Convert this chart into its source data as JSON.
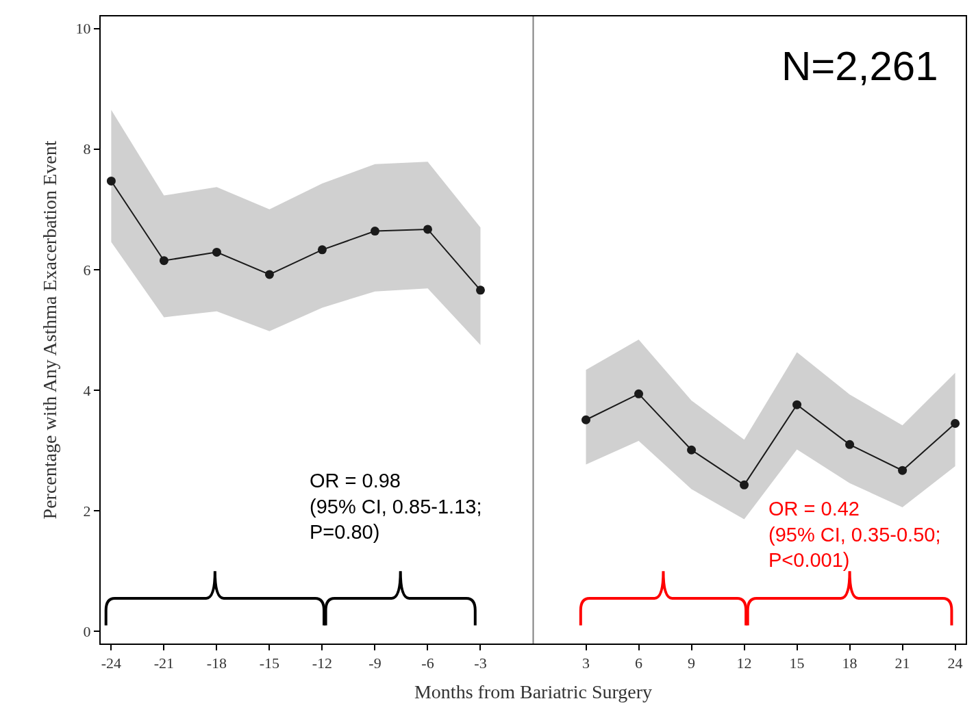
{
  "chart_data": {
    "type": "line",
    "xlabel": "Months from Bariatric Surgery",
    "ylabel": "Percentage with Any Asthma Exacerbation Event",
    "xlim": [
      -24.6,
      24.6
    ],
    "xticks": [
      -24,
      -21,
      -18,
      -15,
      -12,
      -9,
      -6,
      -3,
      3,
      6,
      9,
      12,
      15,
      18,
      21,
      24
    ],
    "ylim": [
      -0.2,
      10.2
    ],
    "yticks": [
      0,
      2,
      4,
      6,
      8,
      10
    ],
    "marker": "circle",
    "line_style": "solid",
    "series": [
      {
        "color": "#1a1a1a",
        "x": [
          -24,
          -21,
          -18,
          -15,
          -12,
          -9,
          -6,
          -3
        ],
        "values": [
          7.47,
          6.15,
          6.29,
          5.92,
          6.33,
          6.64,
          6.67,
          5.66
        ],
        "lower": [
          6.46,
          5.21,
          5.31,
          4.98,
          5.37,
          5.64,
          5.69,
          4.75
        ],
        "upper": [
          8.65,
          7.23,
          7.37,
          7.0,
          7.43,
          7.75,
          7.79,
          6.7
        ]
      },
      {
        "color": "#1a1a1a",
        "x": [
          3,
          6,
          9,
          12,
          15,
          18,
          21,
          24
        ],
        "values": [
          3.51,
          3.94,
          3.01,
          2.43,
          3.76,
          3.1,
          2.67,
          3.45
        ],
        "lower": [
          2.77,
          3.16,
          2.36,
          1.86,
          3.02,
          2.46,
          2.06,
          2.74
        ],
        "upper": [
          4.34,
          4.84,
          3.83,
          3.18,
          4.63,
          3.93,
          3.42,
          4.29
        ]
      }
    ],
    "ref_lines": [
      {
        "axis": "x",
        "value": 0,
        "label": null,
        "color": "#808080"
      }
    ],
    "annotations": [
      "N=2,261",
      "OR = 0.98\n(95% CI, 0.85-1.13;\nP=0.80)",
      "OR = 0.42\n(95% CI, 0.35-0.50;\nP<0.001)"
    ]
  }
}
